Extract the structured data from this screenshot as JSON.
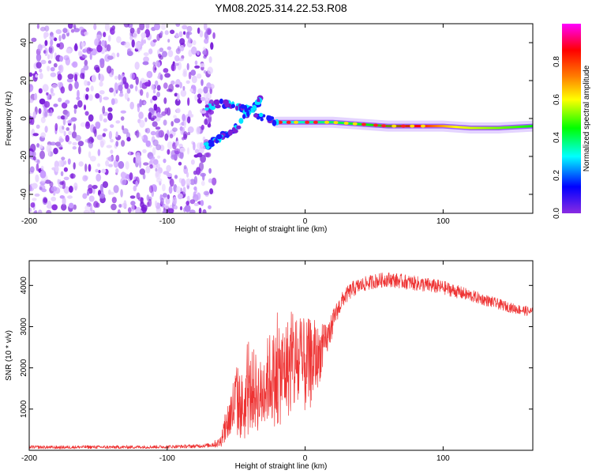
{
  "title": "YM08.2025.314.22.53.R08",
  "chart_data": [
    {
      "type": "heatmap",
      "xlabel": "Height of straight line (km)",
      "ylabel": "Frequency (Hz)",
      "xlim": [
        -200,
        165
      ],
      "ylim": [
        -50,
        50
      ],
      "xticks": [
        "-200",
        "-100",
        "0",
        "100"
      ],
      "xtick_values": [
        -200,
        -100,
        0,
        100
      ],
      "yticks": [
        "-40",
        "-20",
        "0",
        "20",
        "40"
      ],
      "ytick_values": [
        -40,
        -20,
        0,
        20,
        40
      ],
      "colorbar": {
        "label": "Normalized spectral amplitude",
        "range": [
          0,
          1
        ],
        "ticks": [
          "0.0",
          "0.2",
          "0.4",
          "0.6",
          "0.8"
        ],
        "tick_values": [
          0,
          0.2,
          0.4,
          0.6,
          0.8
        ],
        "colors": [
          "#8a2be2",
          "#0000ff",
          "#00ffff",
          "#00ff00",
          "#ffff00",
          "#ff7f00",
          "#ff0000",
          "#ff00ff"
        ]
      },
      "regions": [
        {
          "name": "noise",
          "x_range": [
            -200,
            -72
          ],
          "y_range": [
            -50,
            50
          ],
          "level": 0.1
        },
        {
          "name": "upper branch",
          "points": [
            [
              -72,
              5
            ],
            [
              -62,
              8
            ],
            [
              -50,
              6
            ],
            [
              -38,
              4
            ],
            [
              -30,
              0
            ],
            [
              -20,
              -2
            ]
          ],
          "level": 0.25
        },
        {
          "name": "lower branch",
          "points": [
            [
              -72,
              -15
            ],
            [
              -62,
              -10
            ],
            [
              -50,
              -5
            ],
            [
              -38,
              5
            ],
            [
              -32,
              10
            ]
          ],
          "level": 0.2
        },
        {
          "name": "carrier line",
          "points": [
            [
              -20,
              -2
            ],
            [
              0,
              -2
            ],
            [
              20,
              -2
            ],
            [
              40,
              -3
            ],
            [
              60,
              -4
            ],
            [
              80,
              -4
            ],
            [
              100,
              -4
            ],
            [
              120,
              -5
            ],
            [
              140,
              -5
            ],
            [
              165,
              -4
            ]
          ],
          "level": 0.75
        }
      ]
    },
    {
      "type": "line",
      "xlabel": "Height of straight line (km)",
      "ylabel": "SNR (10 * v/v)",
      "xlim": [
        -200,
        165
      ],
      "ylim": [
        0,
        4600
      ],
      "xticks": [
        "-200",
        "-100",
        "0",
        "100"
      ],
      "xtick_values": [
        -200,
        -100,
        0,
        100
      ],
      "yticks": [
        "1000",
        "2000",
        "3000",
        "4000"
      ],
      "ytick_values": [
        1000,
        2000,
        3000,
        4000
      ],
      "color": "#ee3333",
      "series": [
        {
          "name": "SNR",
          "x": [
            -200,
            -180,
            -160,
            -140,
            -120,
            -100,
            -80,
            -70,
            -62,
            -56,
            -50,
            -44,
            -38,
            -32,
            -26,
            -20,
            -14,
            -8,
            -2,
            4,
            10,
            16,
            22,
            28,
            34,
            40,
            50,
            60,
            70,
            80,
            90,
            100,
            110,
            120,
            130,
            140,
            150,
            165
          ],
          "values": [
            80,
            70,
            80,
            75,
            80,
            85,
            100,
            120,
            180,
            700,
            1200,
            1000,
            1500,
            1300,
            1800,
            1700,
            2000,
            2100,
            2000,
            2100,
            2300,
            2700,
            3300,
            3700,
            3900,
            4000,
            4100,
            4150,
            4100,
            4050,
            4000,
            3950,
            3850,
            3750,
            3650,
            3550,
            3450,
            3350
          ],
          "noise": [
            40,
            40,
            40,
            40,
            40,
            40,
            45,
            50,
            120,
            500,
            900,
            800,
            1000,
            900,
            1100,
            1200,
            1200,
            1300,
            1200,
            1100,
            700,
            400,
            250,
            200,
            200,
            180,
            180,
            180,
            180,
            180,
            180,
            170,
            160,
            150,
            140,
            130,
            120,
            120
          ]
        }
      ]
    }
  ]
}
